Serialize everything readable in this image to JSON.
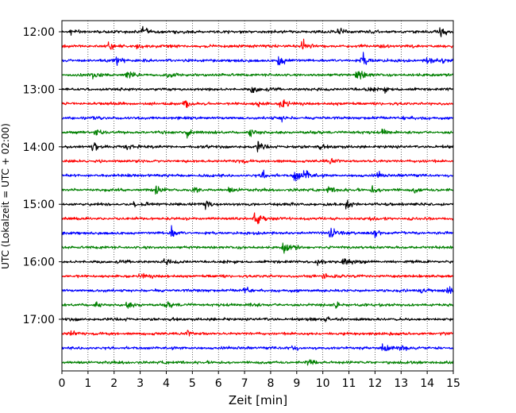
{
  "chart_data": {
    "type": "line",
    "title": "",
    "xlabel": "Zeit  [min]",
    "ylabel": "UTC (Lokalzeit = UTC + 02:00)",
    "xlim": [
      0,
      15
    ],
    "x_ticks": [
      0,
      1,
      2,
      3,
      4,
      5,
      6,
      7,
      8,
      9,
      10,
      11,
      12,
      13,
      14,
      15
    ],
    "y_ticks": [
      "12:00",
      "13:00",
      "14:00",
      "15:00",
      "16:00",
      "17:00"
    ],
    "grid": "vertical dotted",
    "trace_interval_min": 15,
    "color_cycle": [
      "#000000",
      "#ff0000",
      "#0000ff",
      "#008000"
    ],
    "traces": [
      {
        "start": "12:00",
        "color": "black",
        "events": [
          [
            0.3,
            0.5
          ],
          [
            3.1,
            0.6
          ],
          [
            10.6,
            0.45
          ],
          [
            14.5,
            1.0
          ]
        ]
      },
      {
        "start": "12:15",
        "color": "red",
        "events": [
          [
            1.8,
            0.6
          ],
          [
            2.9,
            0.4
          ],
          [
            9.2,
            0.9
          ],
          [
            12.2,
            0.4
          ]
        ]
      },
      {
        "start": "12:30",
        "color": "blue",
        "events": [
          [
            2.1,
            0.6
          ],
          [
            8.3,
            0.8
          ],
          [
            11.5,
            1.1
          ],
          [
            14.0,
            0.5
          ],
          [
            14.6,
            0.4
          ]
        ]
      },
      {
        "start": "12:45",
        "color": "green",
        "events": [
          [
            1.2,
            0.4
          ],
          [
            2.5,
            0.4
          ],
          [
            4.0,
            0.45
          ],
          [
            11.3,
            1.1
          ]
        ]
      },
      {
        "start": "13:00",
        "color": "black",
        "events": [
          [
            7.3,
            0.5
          ],
          [
            11.7,
            0.4
          ],
          [
            12.3,
            0.4
          ]
        ]
      },
      {
        "start": "13:15",
        "color": "red",
        "events": [
          [
            4.7,
            0.6
          ],
          [
            7.5,
            0.45
          ],
          [
            8.4,
            1.0
          ]
        ]
      },
      {
        "start": "13:30",
        "color": "blue",
        "events": [
          [
            8.4,
            0.35
          ],
          [
            13.1,
            0.3
          ]
        ]
      },
      {
        "start": "13:45",
        "color": "green",
        "events": [
          [
            1.3,
            0.6
          ],
          [
            4.8,
            0.6
          ],
          [
            7.2,
            0.7
          ],
          [
            12.3,
            0.5
          ]
        ]
      },
      {
        "start": "14:00",
        "color": "black",
        "events": [
          [
            1.2,
            0.6
          ],
          [
            2.5,
            0.45
          ],
          [
            7.5,
            0.7
          ],
          [
            9.8,
            0.35
          ]
        ]
      },
      {
        "start": "14:15",
        "color": "red",
        "events": [
          [
            6.8,
            0.3
          ],
          [
            10.3,
            0.3
          ]
        ]
      },
      {
        "start": "14:30",
        "color": "blue",
        "events": [
          [
            7.7,
            0.45
          ],
          [
            8.9,
            1.1
          ],
          [
            9.3,
            0.6
          ],
          [
            12.1,
            0.4
          ]
        ]
      },
      {
        "start": "14:45",
        "color": "green",
        "events": [
          [
            3.6,
            0.45
          ],
          [
            5.0,
            0.45
          ],
          [
            6.4,
            0.4
          ],
          [
            10.2,
            0.45
          ],
          [
            11.9,
            0.55
          ],
          [
            13.5,
            0.4
          ]
        ]
      },
      {
        "start": "15:00",
        "color": "black",
        "events": [
          [
            2.8,
            0.45
          ],
          [
            5.5,
            0.5
          ],
          [
            10.9,
            0.7
          ]
        ]
      },
      {
        "start": "15:15",
        "color": "red",
        "events": [
          [
            7.4,
            1.0
          ],
          [
            11.8,
            0.3
          ]
        ]
      },
      {
        "start": "15:30",
        "color": "blue",
        "events": [
          [
            4.2,
            0.7
          ],
          [
            10.3,
            0.8
          ],
          [
            12.0,
            0.4
          ]
        ]
      },
      {
        "start": "15:45",
        "color": "green",
        "events": [
          [
            8.5,
            0.9
          ]
        ]
      },
      {
        "start": "16:00",
        "color": "black",
        "events": [
          [
            3.9,
            0.4
          ],
          [
            9.8,
            0.5
          ],
          [
            10.8,
            0.7
          ]
        ]
      },
      {
        "start": "16:15",
        "color": "red",
        "events": [
          [
            3.0,
            0.6
          ],
          [
            10.0,
            0.3
          ]
        ]
      },
      {
        "start": "16:30",
        "color": "blue",
        "events": [
          [
            7.0,
            0.45
          ],
          [
            13.7,
            0.5
          ],
          [
            14.8,
            0.55
          ]
        ]
      },
      {
        "start": "16:45",
        "color": "green",
        "events": [
          [
            1.3,
            0.4
          ],
          [
            2.5,
            0.4
          ],
          [
            4.0,
            0.4
          ],
          [
            7.2,
            0.45
          ],
          [
            10.5,
            0.35
          ]
        ]
      },
      {
        "start": "17:00",
        "color": "black",
        "events": [
          [
            10.1,
            0.45
          ]
        ]
      },
      {
        "start": "17:15",
        "color": "red",
        "events": [
          [
            0.3,
            0.6
          ],
          [
            4.8,
            0.4
          ]
        ]
      },
      {
        "start": "17:30",
        "color": "blue",
        "events": [
          [
            8.8,
            0.35
          ],
          [
            12.3,
            0.7
          ],
          [
            13.0,
            0.4
          ]
        ]
      },
      {
        "start": "17:45",
        "color": "green",
        "events": [
          [
            9.4,
            0.6
          ]
        ]
      }
    ]
  }
}
